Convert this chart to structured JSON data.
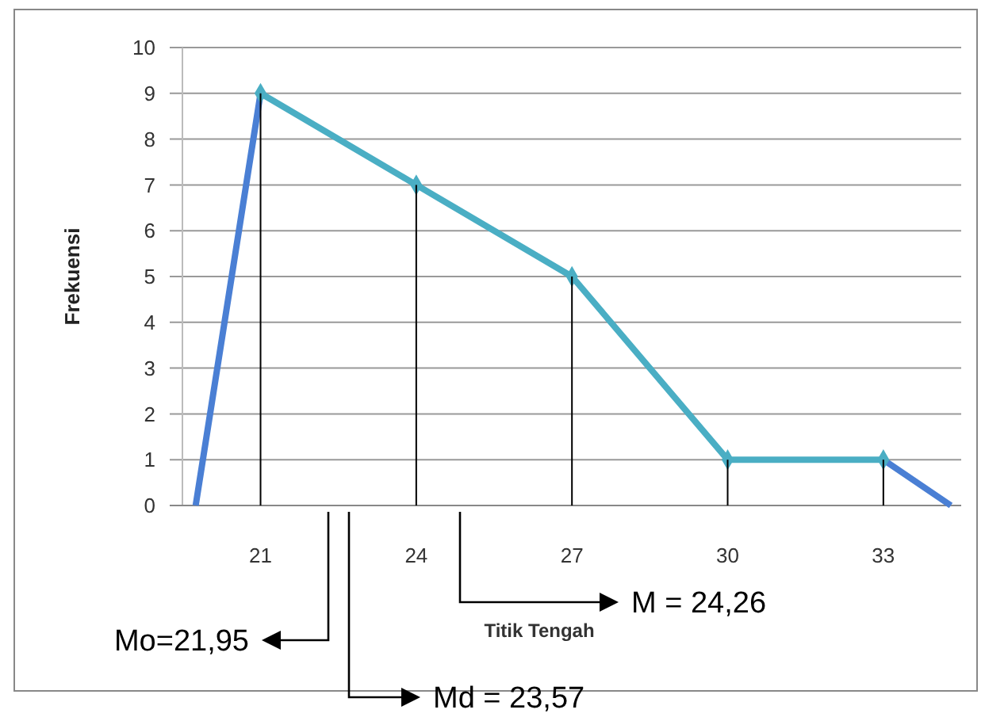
{
  "chart_data": {
    "type": "line",
    "xlabel": "Titik Tengah",
    "ylabel": "Frekuensi",
    "xlim": [
      19.25,
      34.5
    ],
    "xticks": [
      21,
      24,
      27,
      30,
      33
    ],
    "ylim": [
      0,
      10
    ],
    "yticks": [
      0,
      1,
      2,
      3,
      4,
      5,
      6,
      7,
      8,
      9,
      10
    ],
    "grid": "y",
    "series": [
      {
        "color": "#4a7fd4",
        "x": [
          19.75,
          21,
          27,
          33,
          34.3
        ],
        "values": [
          0,
          9,
          null,
          1,
          0
        ],
        "marker": "none"
      },
      {
        "color": "#4aaec4",
        "x": [
          21,
          24,
          27,
          30,
          33
        ],
        "values": [
          9,
          7,
          5,
          1,
          1
        ],
        "marker": "diamond"
      },
      {
        "type": "bar",
        "color": "#000000",
        "x": [
          21,
          24,
          27,
          30,
          33
        ],
        "values": [
          9,
          7,
          5,
          1,
          1
        ]
      }
    ],
    "annotations": [
      "Mo=21,95",
      "Md = 23,57",
      "M = 24,26"
    ]
  }
}
